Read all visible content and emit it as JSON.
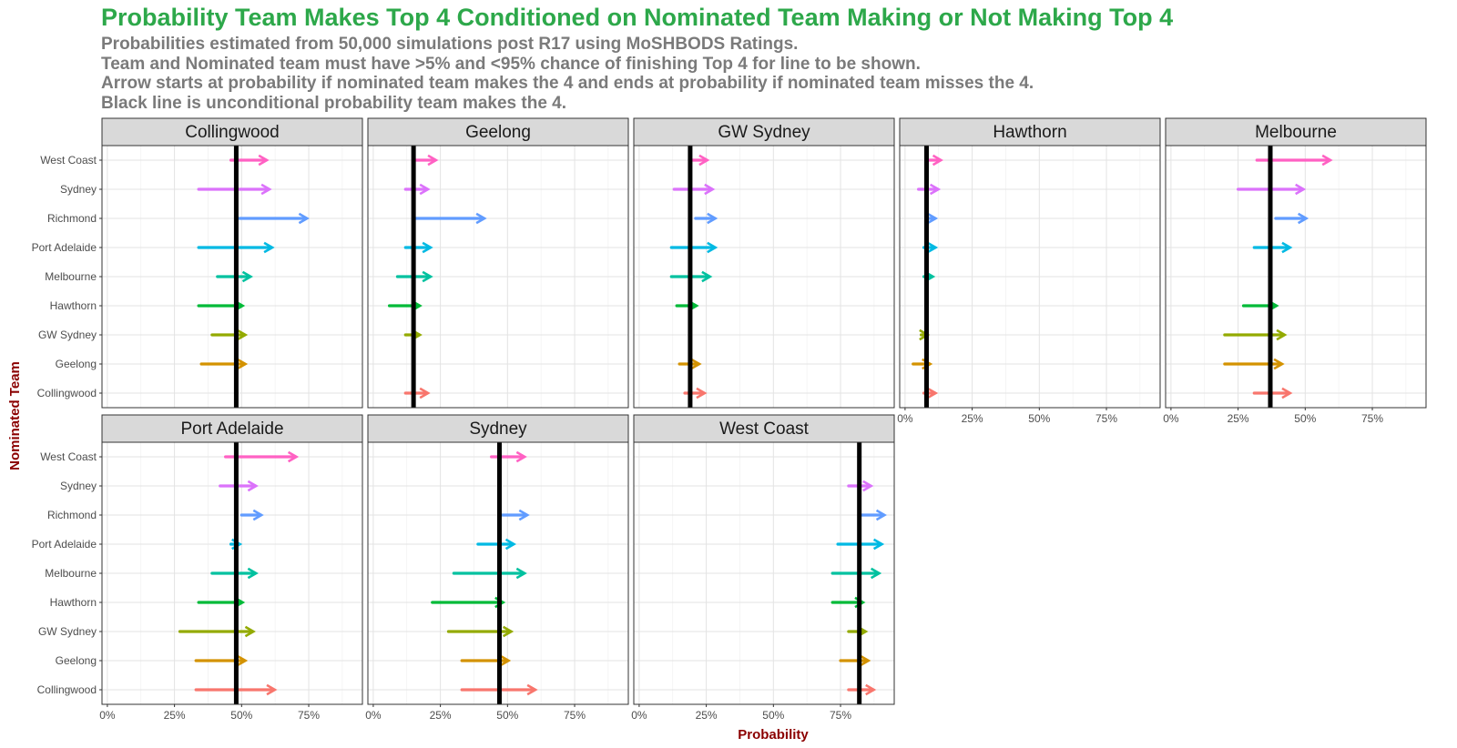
{
  "chart_data": {
    "type": "arrow-facet",
    "title": "Probability Team Makes Top 4 Conditioned on Nominated Team Making or Not Making Top 4",
    "subtitle_lines": [
      "Probabilities estimated from 50,000 simulations post R17 using MoSHBODS Ratings.",
      "Team and Nominated team must have >5% and <95% chance of finishing Top 4 for line to be shown.",
      "Arrow starts at probability if nominated team makes the 4 and ends at probability if nominated team misses the 4.",
      "Black line is unconditional probability team makes the 4."
    ],
    "xlabel": "Probability",
    "ylabel": "Nominated Team",
    "xlim": [
      -0.02,
      0.95
    ],
    "x_ticks": [
      0,
      0.25,
      0.5,
      0.75
    ],
    "x_tick_labels": [
      "0%",
      "25%",
      "50%",
      "75%"
    ],
    "nominated_teams": [
      "West Coast",
      "Sydney",
      "Richmond",
      "Port Adelaide",
      "Melbourne",
      "Hawthorn",
      "GW Sydney",
      "Geelong",
      "Collingwood"
    ],
    "colors": {
      "West Coast": "#ff61c3",
      "Sydney": "#db72fb",
      "Richmond": "#619cff",
      "Port Adelaide": "#00b9e3",
      "Melbourne": "#00c19f",
      "Hawthorn": "#00ba38",
      "GW Sydney": "#93aa00",
      "Geelong": "#d39200",
      "Collingwood": "#f8766d"
    },
    "panels": [
      {
        "team": "Collingwood",
        "unconditional": 0.48,
        "arrows": [
          {
            "nominated": "West Coast",
            "start": 0.46,
            "end": 0.59
          },
          {
            "nominated": "Sydney",
            "start": 0.34,
            "end": 0.6
          },
          {
            "nominated": "Richmond",
            "start": 0.49,
            "end": 0.74
          },
          {
            "nominated": "Port Adelaide",
            "start": 0.34,
            "end": 0.61
          },
          {
            "nominated": "Melbourne",
            "start": 0.41,
            "end": 0.53
          },
          {
            "nominated": "Hawthorn",
            "start": 0.34,
            "end": 0.5
          },
          {
            "nominated": "GW Sydney",
            "start": 0.39,
            "end": 0.51
          },
          {
            "nominated": "Geelong",
            "start": 0.35,
            "end": 0.51
          }
        ]
      },
      {
        "team": "Geelong",
        "unconditional": 0.15,
        "arrows": [
          {
            "nominated": "West Coast",
            "start": 0.15,
            "end": 0.23
          },
          {
            "nominated": "Sydney",
            "start": 0.12,
            "end": 0.2
          },
          {
            "nominated": "Richmond",
            "start": 0.16,
            "end": 0.41
          },
          {
            "nominated": "Port Adelaide",
            "start": 0.12,
            "end": 0.21
          },
          {
            "nominated": "Melbourne",
            "start": 0.09,
            "end": 0.21
          },
          {
            "nominated": "Hawthorn",
            "start": 0.06,
            "end": 0.17
          },
          {
            "nominated": "GW Sydney",
            "start": 0.12,
            "end": 0.17
          },
          {
            "nominated": "Collingwood",
            "start": 0.12,
            "end": 0.2
          }
        ]
      },
      {
        "team": "GW Sydney",
        "unconditional": 0.19,
        "arrows": [
          {
            "nominated": "West Coast",
            "start": 0.19,
            "end": 0.25
          },
          {
            "nominated": "Sydney",
            "start": 0.13,
            "end": 0.27
          },
          {
            "nominated": "Richmond",
            "start": 0.21,
            "end": 0.28
          },
          {
            "nominated": "Port Adelaide",
            "start": 0.12,
            "end": 0.28
          },
          {
            "nominated": "Melbourne",
            "start": 0.12,
            "end": 0.26
          },
          {
            "nominated": "Hawthorn",
            "start": 0.14,
            "end": 0.21
          },
          {
            "nominated": "Geelong",
            "start": 0.15,
            "end": 0.22
          },
          {
            "nominated": "Collingwood",
            "start": 0.17,
            "end": 0.24
          }
        ]
      },
      {
        "team": "Hawthorn",
        "unconditional": 0.08,
        "arrows": [
          {
            "nominated": "West Coast",
            "start": 0.08,
            "end": 0.13
          },
          {
            "nominated": "Sydney",
            "start": 0.05,
            "end": 0.12
          },
          {
            "nominated": "Richmond",
            "start": 0.08,
            "end": 0.11
          },
          {
            "nominated": "Port Adelaide",
            "start": 0.07,
            "end": 0.11
          },
          {
            "nominated": "Melbourne",
            "start": 0.07,
            "end": 0.1
          },
          {
            "nominated": "GW Sydney",
            "start": 0.06,
            "end": 0.08
          },
          {
            "nominated": "Geelong",
            "start": 0.03,
            "end": 0.09
          },
          {
            "nominated": "Collingwood",
            "start": 0.07,
            "end": 0.11
          }
        ]
      },
      {
        "team": "Melbourne",
        "unconditional": 0.37,
        "arrows": [
          {
            "nominated": "West Coast",
            "start": 0.32,
            "end": 0.59
          },
          {
            "nominated": "Sydney",
            "start": 0.25,
            "end": 0.49
          },
          {
            "nominated": "Richmond",
            "start": 0.39,
            "end": 0.5
          },
          {
            "nominated": "Port Adelaide",
            "start": 0.31,
            "end": 0.44
          },
          {
            "nominated": "Hawthorn",
            "start": 0.27,
            "end": 0.39
          },
          {
            "nominated": "GW Sydney",
            "start": 0.2,
            "end": 0.42
          },
          {
            "nominated": "Geelong",
            "start": 0.2,
            "end": 0.41
          },
          {
            "nominated": "Collingwood",
            "start": 0.31,
            "end": 0.44
          }
        ]
      },
      {
        "team": "Port Adelaide",
        "unconditional": 0.48,
        "arrows": [
          {
            "nominated": "West Coast",
            "start": 0.44,
            "end": 0.7
          },
          {
            "nominated": "Sydney",
            "start": 0.42,
            "end": 0.55
          },
          {
            "nominated": "Richmond",
            "start": 0.5,
            "end": 0.57
          },
          {
            "nominated": "Port Adelaide",
            "start": 0.46,
            "end": 0.49
          },
          {
            "nominated": "Melbourne",
            "start": 0.39,
            "end": 0.55
          },
          {
            "nominated": "Hawthorn",
            "start": 0.34,
            "end": 0.5
          },
          {
            "nominated": "GW Sydney",
            "start": 0.27,
            "end": 0.54
          },
          {
            "nominated": "Geelong",
            "start": 0.33,
            "end": 0.51
          },
          {
            "nominated": "Collingwood",
            "start": 0.33,
            "end": 0.62
          }
        ]
      },
      {
        "team": "Sydney",
        "unconditional": 0.47,
        "arrows": [
          {
            "nominated": "West Coast",
            "start": 0.44,
            "end": 0.56
          },
          {
            "nominated": "Richmond",
            "start": 0.47,
            "end": 0.57
          },
          {
            "nominated": "Port Adelaide",
            "start": 0.39,
            "end": 0.52
          },
          {
            "nominated": "Melbourne",
            "start": 0.3,
            "end": 0.56
          },
          {
            "nominated": "Hawthorn",
            "start": 0.22,
            "end": 0.48
          },
          {
            "nominated": "GW Sydney",
            "start": 0.28,
            "end": 0.51
          },
          {
            "nominated": "Geelong",
            "start": 0.33,
            "end": 0.5
          },
          {
            "nominated": "Collingwood",
            "start": 0.33,
            "end": 0.6
          }
        ]
      },
      {
        "team": "West Coast",
        "unconditional": 0.82,
        "arrows": [
          {
            "nominated": "Sydney",
            "start": 0.78,
            "end": 0.86
          },
          {
            "nominated": "Richmond",
            "start": 0.82,
            "end": 0.91
          },
          {
            "nominated": "Port Adelaide",
            "start": 0.74,
            "end": 0.9
          },
          {
            "nominated": "Melbourne",
            "start": 0.72,
            "end": 0.89
          },
          {
            "nominated": "Hawthorn",
            "start": 0.72,
            "end": 0.83
          },
          {
            "nominated": "GW Sydney",
            "start": 0.78,
            "end": 0.84
          },
          {
            "nominated": "Geelong",
            "start": 0.75,
            "end": 0.85
          },
          {
            "nominated": "Collingwood",
            "start": 0.78,
            "end": 0.87
          }
        ]
      }
    ]
  }
}
